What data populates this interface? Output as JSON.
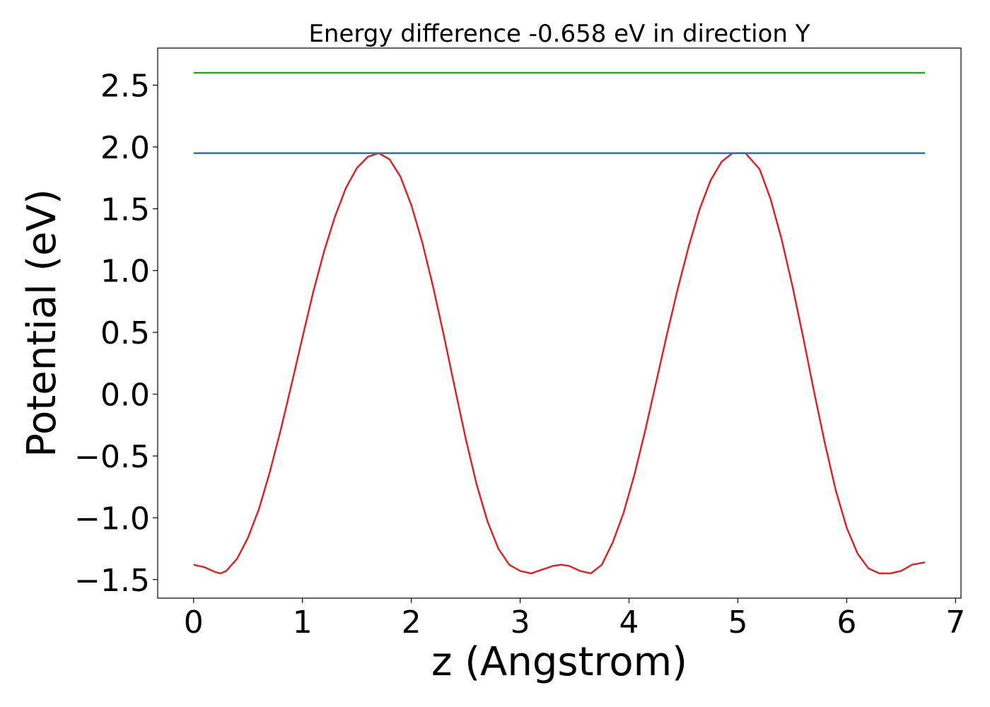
{
  "chart_data": {
    "type": "line",
    "title": "Energy difference -0.658 eV in direction Y",
    "xlabel": "z (Angstrom)",
    "ylabel": "Potential (eV)",
    "xlim": [
      -0.33,
      7.05
    ],
    "ylim": [
      -1.65,
      2.8
    ],
    "x_ticks": [
      0,
      1,
      2,
      3,
      4,
      5,
      6,
      7
    ],
    "x_tick_labels": [
      "0",
      "1",
      "2",
      "3",
      "4",
      "5",
      "6",
      "7"
    ],
    "y_ticks": [
      -1.5,
      -1.0,
      -0.5,
      0.0,
      0.5,
      1.0,
      1.5,
      2.0,
      2.5
    ],
    "y_tick_labels": [
      "−1.5",
      "−1.0",
      "−0.5",
      "0.0",
      "0.5",
      "1.0",
      "1.5",
      "2.0",
      "2.5"
    ],
    "grid": false,
    "series": [
      {
        "color": "#d62728",
        "x": [
          0.0,
          0.1,
          0.2,
          0.25,
          0.3,
          0.4,
          0.5,
          0.6,
          0.7,
          0.8,
          0.9,
          1.0,
          1.1,
          1.2,
          1.3,
          1.4,
          1.5,
          1.6,
          1.7,
          1.8,
          1.9,
          2.0,
          2.1,
          2.2,
          2.3,
          2.4,
          2.5,
          2.6,
          2.7,
          2.8,
          2.9,
          3.0,
          3.1,
          3.2,
          3.3,
          3.38,
          3.45,
          3.55,
          3.65,
          3.75,
          3.85,
          3.95,
          4.05,
          4.15,
          4.25,
          4.35,
          4.45,
          4.55,
          4.65,
          4.75,
          4.85,
          4.95,
          5.07,
          5.2,
          5.3,
          5.4,
          5.5,
          5.6,
          5.7,
          5.8,
          5.9,
          6.0,
          6.1,
          6.2,
          6.3,
          6.4,
          6.5,
          6.6,
          6.72
        ],
        "y": [
          -1.38,
          -1.4,
          -1.44,
          -1.45,
          -1.43,
          -1.33,
          -1.16,
          -0.93,
          -0.63,
          -0.29,
          0.08,
          0.46,
          0.83,
          1.16,
          1.44,
          1.67,
          1.83,
          1.92,
          1.95,
          1.9,
          1.76,
          1.53,
          1.23,
          0.87,
          0.47,
          0.05,
          -0.36,
          -0.73,
          -1.03,
          -1.25,
          -1.38,
          -1.43,
          -1.45,
          -1.42,
          -1.39,
          -1.38,
          -1.39,
          -1.43,
          -1.45,
          -1.38,
          -1.2,
          -0.96,
          -0.65,
          -0.29,
          0.1,
          0.49,
          0.86,
          1.2,
          1.5,
          1.73,
          1.88,
          1.95,
          1.95,
          1.82,
          1.58,
          1.26,
          0.88,
          0.46,
          0.02,
          -0.4,
          -0.78,
          -1.08,
          -1.29,
          -1.41,
          -1.45,
          -1.45,
          -1.43,
          -1.38,
          -1.36
        ]
      },
      {
        "color": "#1f77b4",
        "x": [
          0.0,
          6.72
        ],
        "y": [
          1.95,
          1.95
        ]
      },
      {
        "color": "#2ca02c",
        "x": [
          0.0,
          6.72
        ],
        "y": [
          2.6,
          2.6
        ]
      }
    ]
  }
}
